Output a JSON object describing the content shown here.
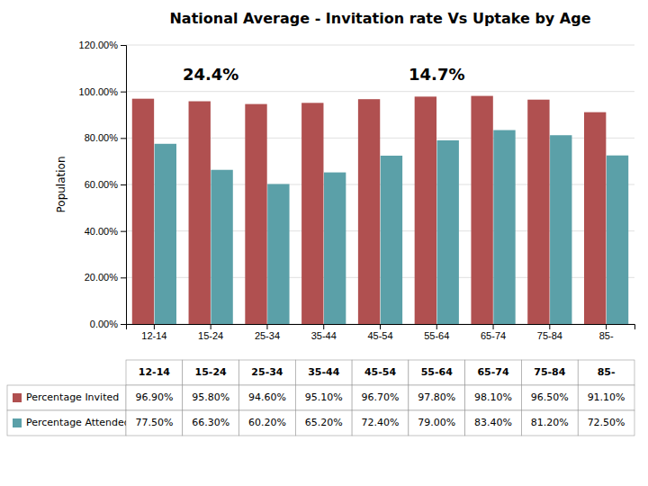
{
  "chart_data": {
    "type": "bar",
    "title": "National Average - Invitation rate Vs Uptake by Age",
    "categories": [
      "12-14",
      "15-24",
      "25-34",
      "35-44",
      "45-54",
      "55-64",
      "65-74",
      "75-84",
      "85-"
    ],
    "series": [
      {
        "name": "Percentage Invited",
        "color": "#B05050",
        "values": [
          96.9,
          95.8,
          94.6,
          95.1,
          96.7,
          97.8,
          98.1,
          96.5,
          91.1
        ],
        "value_labels": [
          "96.90%",
          "95.80%",
          "94.60%",
          "95.10%",
          "96.70%",
          "97.80%",
          "98.10%",
          "96.50%",
          "91.10%"
        ]
      },
      {
        "name": "Percentage Attended",
        "color": "#5BA0A8",
        "values": [
          77.5,
          66.3,
          60.2,
          65.2,
          72.4,
          79.0,
          83.4,
          81.2,
          72.5
        ],
        "value_labels": [
          "77.50%",
          "66.30%",
          "60.20%",
          "65.20%",
          "72.40%",
          "79.00%",
          "83.40%",
          "81.20%",
          "72.50%"
        ]
      }
    ],
    "ylabel": "Population",
    "ylim": [
      0,
      120
    ],
    "yticks": [
      {
        "value": 0,
        "label": "0.00%"
      },
      {
        "value": 20,
        "label": "20.00%"
      },
      {
        "value": 40,
        "label": "40.00%"
      },
      {
        "value": 60,
        "label": "60.00%"
      },
      {
        "value": 80,
        "label": "80.00%"
      },
      {
        "value": 100,
        "label": "100.00%"
      },
      {
        "value": 120,
        "label": "120.00%"
      }
    ],
    "grid": true,
    "annotations": [
      {
        "text": "24.4%",
        "x": "15-24",
        "y": 107
      },
      {
        "text": "14.7%",
        "x": "55-64",
        "y": 107
      }
    ]
  }
}
